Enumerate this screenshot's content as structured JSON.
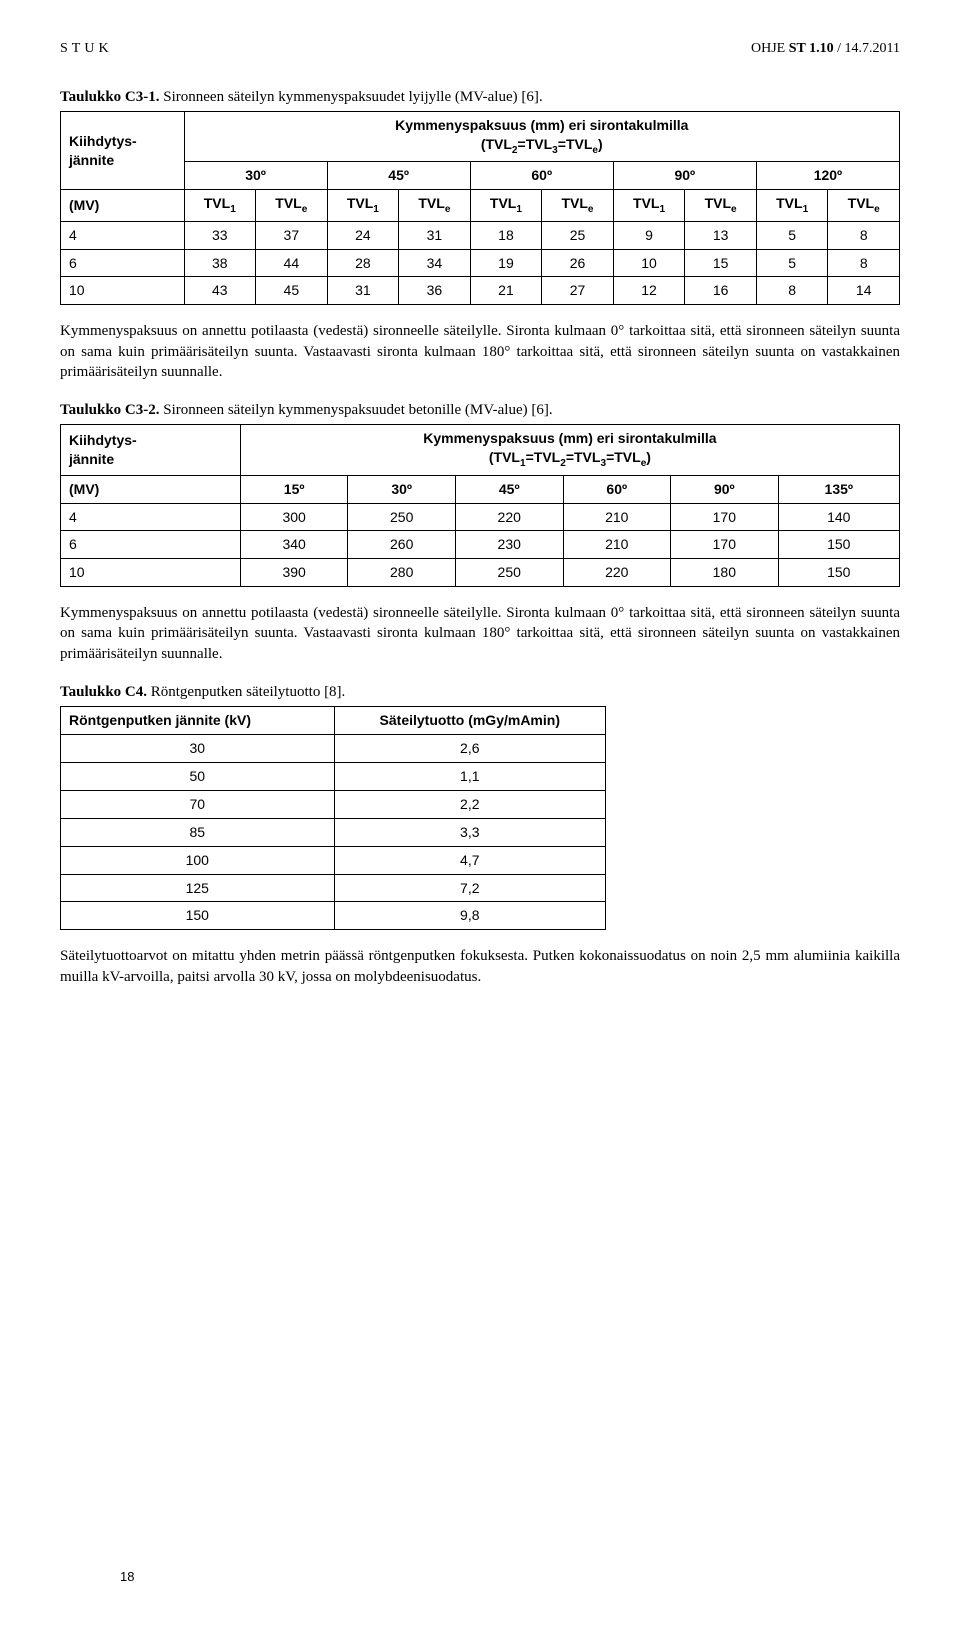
{
  "header": {
    "left": "STUK",
    "right_prefix": "OHJE ",
    "right_bold": "ST 1.10",
    "right_suffix": " / 14.7.2011"
  },
  "captionC3_1_bold": "Taulukko C3-1.",
  "captionC3_1_rest": " Sironneen säteilyn kymmenyspaksuudet lyijylle (MV-alue) [6].",
  "tableC3_1": {
    "colgroup_header1": "Kymmenyspaksuus (mm) eri sirontakulmilla",
    "colgroup_header2_html": "(TVL<sub>2</sub>=TVL<sub>3</sub>=TVL<sub>e</sub>)",
    "row_label1": "Kiihdytys-",
    "row_label2": "jännite",
    "mv_label": "(MV)",
    "angles": [
      "30º",
      "45º",
      "60º",
      "90º",
      "120º"
    ],
    "sub_cols": [
      "TVL1",
      "TVLe",
      "TVL1",
      "TVLe",
      "TVL1",
      "TVLe",
      "TVL1",
      "TVLe",
      "TVL1",
      "TVLe"
    ],
    "rows": [
      {
        "mv": "4",
        "vals": [
          33,
          37,
          24,
          31,
          18,
          25,
          9,
          13,
          5,
          8
        ]
      },
      {
        "mv": "6",
        "vals": [
          38,
          44,
          28,
          34,
          19,
          26,
          10,
          15,
          5,
          8
        ]
      },
      {
        "mv": "10",
        "vals": [
          43,
          45,
          31,
          36,
          21,
          27,
          12,
          16,
          8,
          14
        ]
      }
    ]
  },
  "para1": "Kymmenyspaksuus on annettu potilaasta (vedestä) sironneelle säteilylle. Sironta kulmaan 0° tarkoittaa sitä, että sironneen säteilyn suunta on sama kuin primäärisäteilyn suunta. Vastaavasti sironta kulmaan 180° tarkoittaa sitä, että sironneen säteilyn suunta on vastakkainen primäärisäteilyn suunnalle.",
  "captionC3_2_bold": "Taulukko C3-2.",
  "captionC3_2_rest": " Sironneen säteilyn kymmenyspaksuudet betonille (MV-alue) [6].",
  "tableC3_2": {
    "colgroup_header1": "Kymmenyspaksuus (mm) eri sirontakulmilla",
    "colgroup_header2_html": "(TVL<sub>1</sub>=TVL<sub>2</sub>=TVL<sub>3</sub>=TVL<sub>e</sub>)",
    "row_label1": "Kiihdytys-",
    "row_label2": "jännite",
    "mv_label": "(MV)",
    "angles": [
      "15º",
      "30º",
      "45º",
      "60º",
      "90º",
      "135º"
    ],
    "rows": [
      {
        "mv": "4",
        "vals": [
          300,
          250,
          220,
          210,
          170,
          140
        ]
      },
      {
        "mv": "6",
        "vals": [
          340,
          260,
          230,
          210,
          170,
          150
        ]
      },
      {
        "mv": "10",
        "vals": [
          390,
          280,
          250,
          220,
          180,
          150
        ]
      }
    ]
  },
  "para2": "Kymmenyspaksuus on annettu potilaasta (vedestä) sironneelle säteilylle. Sironta kulmaan 0° tarkoittaa sitä, että sironneen säteilyn suunta on sama kuin primäärisäteilyn suunta. Vastaavasti sironta kulmaan 180° tarkoittaa sitä, että sironneen säteilyn suunta on vastakkainen primäärisäteilyn suunnalle.",
  "captionC4_bold": "Taulukko C4.",
  "captionC4_rest": " Röntgenputken säteilytuotto [8].",
  "tableC4": {
    "col1_header": "Röntgenputken jännite (kV)",
    "col2_header": "Säteilytuotto (mGy/mAmin)",
    "rows": [
      {
        "kv": "30",
        "out": "2,6"
      },
      {
        "kv": "50",
        "out": "1,1"
      },
      {
        "kv": "70",
        "out": "2,2"
      },
      {
        "kv": "85",
        "out": "3,3"
      },
      {
        "kv": "100",
        "out": "4,7"
      },
      {
        "kv": "125",
        "out": "7,2"
      },
      {
        "kv": "150",
        "out": "9,8"
      }
    ]
  },
  "para3": "Säteilytuottoarvot on mitattu yhden metrin päässä röntgenputken fokuksesta. Putken kokonaissuodatus on noin 2,5 mm alumiinia kaikilla muilla kV-arvoilla, paitsi arvolla 30 kV, jossa on molybdeenisuodatus.",
  "page_number": "18"
}
